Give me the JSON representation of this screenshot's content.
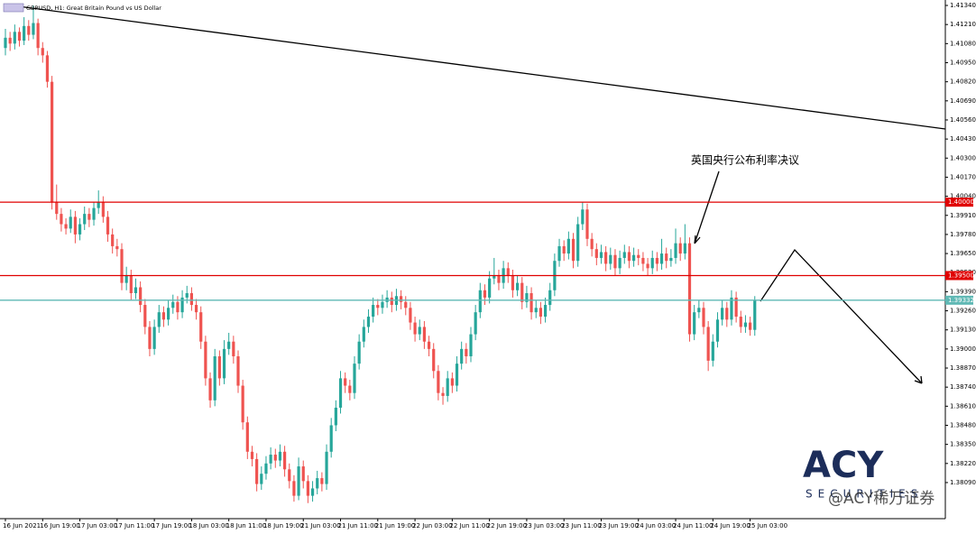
{
  "chart_data": {
    "type": "candlestick",
    "title": "GBPUSD, H1:  Great Britain Pound vs US Dollar",
    "annotation": "英国央行公布利率决议",
    "logo": "ACY",
    "logo_sub": "SECURITIES",
    "watermark": "@ACY稀万证券",
    "up_color": "#26a69a",
    "down_color": "#ef5350",
    "ylim": [
      1.37844,
      1.41377
    ],
    "yticks": [
      {
        "value": 1.4134,
        "label": "1.41340"
      },
      {
        "value": 1.4121,
        "label": "1.41210"
      },
      {
        "value": 1.4108,
        "label": "1.41080"
      },
      {
        "value": 1.4095,
        "label": "1.40950"
      },
      {
        "value": 1.4082,
        "label": "1.40820"
      },
      {
        "value": 1.4069,
        "label": "1.40690"
      },
      {
        "value": 1.4056,
        "label": "1.40560"
      },
      {
        "value": 1.4043,
        "label": "1.40430"
      },
      {
        "value": 1.403,
        "label": "1.40300"
      },
      {
        "value": 1.4017,
        "label": "1.40170"
      },
      {
        "value": 1.4004,
        "label": "1.40040"
      },
      {
        "value": 1.3991,
        "label": "1.39910"
      },
      {
        "value": 1.3978,
        "label": "1.39780"
      },
      {
        "value": 1.3965,
        "label": "1.39650"
      },
      {
        "value": 1.3952,
        "label": "1.39520"
      },
      {
        "value": 1.3939,
        "label": "1.39390"
      },
      {
        "value": 1.3926,
        "label": "1.39260"
      },
      {
        "value": 1.3913,
        "label": "1.39130"
      },
      {
        "value": 1.39,
        "label": "1.39000"
      },
      {
        "value": 1.3887,
        "label": "1.38870"
      },
      {
        "value": 1.3874,
        "label": "1.38740"
      },
      {
        "value": 1.3861,
        "label": "1.38610"
      },
      {
        "value": 1.3848,
        "label": "1.38480"
      },
      {
        "value": 1.3835,
        "label": "1.38350"
      },
      {
        "value": 1.3822,
        "label": "1.38220"
      },
      {
        "value": 1.3809,
        "label": "1.38090"
      }
    ],
    "levels": [
      {
        "value": 1.4,
        "label": "1.40000",
        "color": "#e00000"
      },
      {
        "value": 1.395,
        "label": "1.39500",
        "color": "#e00000"
      },
      {
        "value": 1.39332,
        "label": "1.39332",
        "color": "#5fb8b4"
      }
    ],
    "categories": [
      "16 Jun 2021",
      null,
      null,
      null,
      null,
      null,
      null,
      null,
      "16 Jun 19:00",
      null,
      null,
      null,
      null,
      null,
      null,
      null,
      "17 Jun 03:00",
      null,
      null,
      null,
      null,
      null,
      null,
      null,
      "17 Jun 11:00",
      null,
      null,
      null,
      null,
      null,
      null,
      null,
      "17 Jun 19:00",
      null,
      null,
      null,
      null,
      null,
      null,
      null,
      "18 Jun 03:00",
      null,
      null,
      null,
      null,
      null,
      null,
      null,
      "18 Jun 11:00",
      null,
      null,
      null,
      null,
      null,
      null,
      null,
      "18 Jun 19:00",
      null,
      null,
      null,
      null,
      null,
      null,
      null,
      "21 Jun 03:00",
      null,
      null,
      null,
      null,
      null,
      null,
      null,
      "21 Jun 11:00",
      null,
      null,
      null,
      null,
      null,
      null,
      null,
      "21 Jun 19:00",
      null,
      null,
      null,
      null,
      null,
      null,
      null,
      "22 Jun 03:00",
      null,
      null,
      null,
      null,
      null,
      null,
      null,
      "22 Jun 11:00",
      null,
      null,
      null,
      null,
      null,
      null,
      null,
      "22 Jun 19:00",
      null,
      null,
      null,
      null,
      null,
      null,
      null,
      "23 Jun 03:00",
      null,
      null,
      null,
      null,
      null,
      null,
      null,
      "23 Jun 11:00",
      null,
      null,
      null,
      null,
      null,
      null,
      null,
      "23 Jun 19:00",
      null,
      null,
      null,
      null,
      null,
      null,
      null,
      "24 Jun 03:00",
      null,
      null,
      null,
      null,
      null,
      null,
      null,
      "24 Jun 11:00",
      null,
      null,
      null,
      null,
      null,
      null,
      null,
      "24 Jun 19:00",
      null,
      null,
      null,
      null,
      null,
      null,
      null,
      "25 Jun 03:00",
      null
    ],
    "ohlc": [
      [
        1.4105,
        1.4118,
        1.41,
        1.4112
      ],
      [
        1.4112,
        1.4116,
        1.4103,
        1.4108
      ],
      [
        1.4108,
        1.4121,
        1.4104,
        1.4116
      ],
      [
        1.4116,
        1.4119,
        1.4106,
        1.411
      ],
      [
        1.411,
        1.4126,
        1.4107,
        1.412
      ],
      [
        1.412,
        1.4124,
        1.411,
        1.4114
      ],
      [
        1.4114,
        1.4134,
        1.4111,
        1.4122
      ],
      [
        1.4122,
        1.4125,
        1.41,
        1.4105
      ],
      [
        1.4105,
        1.4109,
        1.4095,
        1.41
      ],
      [
        1.41,
        1.4103,
        1.4078,
        1.4082
      ],
      [
        1.4082,
        1.4086,
        1.3995,
        1.4
      ],
      [
        1.4,
        1.4012,
        1.3988,
        1.3992
      ],
      [
        1.3992,
        1.3996,
        1.398,
        1.3985
      ],
      [
        1.3985,
        1.3989,
        1.3978,
        1.3982
      ],
      [
        1.3982,
        1.3995,
        1.3979,
        1.399
      ],
      [
        1.399,
        1.3994,
        1.3972,
        1.3978
      ],
      [
        1.3978,
        1.3989,
        1.3974,
        1.3985
      ],
      [
        1.3985,
        1.3997,
        1.3981,
        1.3992
      ],
      [
        1.3992,
        1.3996,
        1.3983,
        1.3988
      ],
      [
        1.3988,
        1.4,
        1.3984,
        1.3996
      ],
      [
        1.3996,
        1.4008,
        1.3992,
        1.4
      ],
      [
        1.4,
        1.4004,
        1.3986,
        1.399
      ],
      [
        1.399,
        1.3994,
        1.3973,
        1.3978
      ],
      [
        1.3978,
        1.3982,
        1.3965,
        1.397
      ],
      [
        1.397,
        1.3975,
        1.3963,
        1.3968
      ],
      [
        1.3968,
        1.3972,
        1.394,
        1.3945
      ],
      [
        1.3945,
        1.3956,
        1.394,
        1.395
      ],
      [
        1.395,
        1.3954,
        1.3933,
        1.3938
      ],
      [
        1.3938,
        1.3948,
        1.3934,
        1.3942
      ],
      [
        1.3942,
        1.3946,
        1.3925,
        1.393
      ],
      [
        1.393,
        1.3934,
        1.391,
        1.3915
      ],
      [
        1.3915,
        1.3919,
        1.3895,
        1.39
      ],
      [
        1.39,
        1.392,
        1.3896,
        1.3915
      ],
      [
        1.3915,
        1.393,
        1.3911,
        1.3925
      ],
      [
        1.3925,
        1.3929,
        1.3915,
        1.392
      ],
      [
        1.392,
        1.3933,
        1.3916,
        1.3928
      ],
      [
        1.3928,
        1.3937,
        1.3924,
        1.3932
      ],
      [
        1.3932,
        1.3936,
        1.392,
        1.3925
      ],
      [
        1.3925,
        1.394,
        1.3921,
        1.3935
      ],
      [
        1.3935,
        1.3943,
        1.3931,
        1.3938
      ],
      [
        1.3938,
        1.3942,
        1.3926,
        1.393
      ],
      [
        1.393,
        1.3934,
        1.392,
        1.3925
      ],
      [
        1.3925,
        1.3929,
        1.39,
        1.3905
      ],
      [
        1.3905,
        1.3909,
        1.3875,
        1.388
      ],
      [
        1.388,
        1.3884,
        1.386,
        1.3865
      ],
      [
        1.3865,
        1.39,
        1.3861,
        1.3895
      ],
      [
        1.3895,
        1.3899,
        1.3875,
        1.388
      ],
      [
        1.388,
        1.3906,
        1.3876,
        1.39
      ],
      [
        1.39,
        1.3911,
        1.3896,
        1.3905
      ],
      [
        1.3905,
        1.3909,
        1.389,
        1.3895
      ],
      [
        1.3895,
        1.3899,
        1.387,
        1.3875
      ],
      [
        1.3875,
        1.3879,
        1.3845,
        1.385
      ],
      [
        1.385,
        1.3854,
        1.3825,
        1.383
      ],
      [
        1.383,
        1.3834,
        1.382,
        1.3825
      ],
      [
        1.3825,
        1.3829,
        1.3803,
        1.3808
      ],
      [
        1.3808,
        1.382,
        1.3804,
        1.3815
      ],
      [
        1.3815,
        1.3827,
        1.3811,
        1.3822
      ],
      [
        1.3822,
        1.3833,
        1.3818,
        1.3828
      ],
      [
        1.3828,
        1.3832,
        1.3819,
        1.3824
      ],
      [
        1.3824,
        1.3835,
        1.382,
        1.383
      ],
      [
        1.383,
        1.3834,
        1.3813,
        1.3818
      ],
      [
        1.3818,
        1.3822,
        1.3805,
        1.381
      ],
      [
        1.381,
        1.3814,
        1.3796,
        1.38
      ],
      [
        1.38,
        1.3826,
        1.3797,
        1.382
      ],
      [
        1.382,
        1.3824,
        1.3805,
        1.381
      ],
      [
        1.381,
        1.3814,
        1.3795,
        1.38
      ],
      [
        1.38,
        1.381,
        1.3796,
        1.3805
      ],
      [
        1.3805,
        1.3817,
        1.3801,
        1.3812
      ],
      [
        1.3812,
        1.3816,
        1.3803,
        1.3808
      ],
      [
        1.3808,
        1.3835,
        1.3804,
        1.383
      ],
      [
        1.383,
        1.3853,
        1.3826,
        1.3848
      ],
      [
        1.3848,
        1.3865,
        1.3844,
        1.386
      ],
      [
        1.386,
        1.3885,
        1.3856,
        1.388
      ],
      [
        1.388,
        1.3884,
        1.387,
        1.3875
      ],
      [
        1.3875,
        1.3879,
        1.3865,
        1.387
      ],
      [
        1.387,
        1.3895,
        1.3866,
        1.389
      ],
      [
        1.389,
        1.391,
        1.3886,
        1.3905
      ],
      [
        1.3905,
        1.392,
        1.3901,
        1.3915
      ],
      [
        1.3915,
        1.3927,
        1.3911,
        1.3922
      ],
      [
        1.3922,
        1.3935,
        1.3918,
        1.393
      ],
      [
        1.393,
        1.3934,
        1.3923,
        1.3928
      ],
      [
        1.3928,
        1.3937,
        1.3924,
        1.3932
      ],
      [
        1.3932,
        1.394,
        1.3928,
        1.3935
      ],
      [
        1.3935,
        1.3939,
        1.3925,
        1.393
      ],
      [
        1.393,
        1.3941,
        1.3926,
        1.3936
      ],
      [
        1.3936,
        1.394,
        1.3927,
        1.3932
      ],
      [
        1.3932,
        1.3936,
        1.3923,
        1.3928
      ],
      [
        1.3928,
        1.3932,
        1.3913,
        1.3918
      ],
      [
        1.3918,
        1.3922,
        1.3905,
        1.391
      ],
      [
        1.391,
        1.392,
        1.3906,
        1.3915
      ],
      [
        1.3915,
        1.3919,
        1.39,
        1.3905
      ],
      [
        1.3905,
        1.3909,
        1.3895,
        1.39
      ],
      [
        1.39,
        1.3904,
        1.388,
        1.3885
      ],
      [
        1.3885,
        1.3889,
        1.3865,
        1.387
      ],
      [
        1.387,
        1.3874,
        1.3862,
        1.3868
      ],
      [
        1.3868,
        1.3885,
        1.3864,
        1.388
      ],
      [
        1.388,
        1.3884,
        1.387,
        1.3875
      ],
      [
        1.3875,
        1.3895,
        1.3871,
        1.389
      ],
      [
        1.389,
        1.3905,
        1.3886,
        1.39
      ],
      [
        1.39,
        1.3904,
        1.389,
        1.3895
      ],
      [
        1.3895,
        1.3915,
        1.3891,
        1.391
      ],
      [
        1.391,
        1.393,
        1.3906,
        1.3925
      ],
      [
        1.3925,
        1.3945,
        1.3921,
        1.394
      ],
      [
        1.394,
        1.3944,
        1.393,
        1.3935
      ],
      [
        1.3935,
        1.3953,
        1.3931,
        1.3948
      ],
      [
        1.3948,
        1.3962,
        1.3944,
        1.395
      ],
      [
        1.395,
        1.3954,
        1.394,
        1.3945
      ],
      [
        1.3945,
        1.396,
        1.3941,
        1.3955
      ],
      [
        1.3955,
        1.3959,
        1.3945,
        1.395
      ],
      [
        1.395,
        1.3954,
        1.3935,
        1.394
      ],
      [
        1.394,
        1.395,
        1.3936,
        1.3945
      ],
      [
        1.3945,
        1.3949,
        1.3927,
        1.3932
      ],
      [
        1.3932,
        1.3943,
        1.3928,
        1.3938
      ],
      [
        1.3938,
        1.3942,
        1.392,
        1.3925
      ],
      [
        1.3925,
        1.3933,
        1.3921,
        1.3928
      ],
      [
        1.3928,
        1.3932,
        1.3917,
        1.3922
      ],
      [
        1.3922,
        1.3935,
        1.3918,
        1.393
      ],
      [
        1.393,
        1.3945,
        1.3926,
        1.394
      ],
      [
        1.394,
        1.3965,
        1.3936,
        1.396
      ],
      [
        1.396,
        1.3975,
        1.3956,
        1.397
      ],
      [
        1.397,
        1.3974,
        1.396,
        1.3965
      ],
      [
        1.3965,
        1.398,
        1.3961,
        1.3975
      ],
      [
        1.3975,
        1.3979,
        1.3955,
        1.396
      ],
      [
        1.396,
        1.399,
        1.3956,
        1.3985
      ],
      [
        1.3985,
        1.4,
        1.3981,
        1.3995
      ],
      [
        1.3995,
        1.3999,
        1.397,
        1.3975
      ],
      [
        1.3975,
        1.3979,
        1.3963,
        1.3968
      ],
      [
        1.3968,
        1.3972,
        1.3957,
        1.3962
      ],
      [
        1.3962,
        1.3971,
        1.3958,
        1.3966
      ],
      [
        1.3966,
        1.397,
        1.3953,
        1.3958
      ],
      [
        1.3958,
        1.3969,
        1.3954,
        1.3964
      ],
      [
        1.3964,
        1.3968,
        1.395,
        1.3955
      ],
      [
        1.3955,
        1.3967,
        1.3951,
        1.3962
      ],
      [
        1.3962,
        1.3971,
        1.3958,
        1.3966
      ],
      [
        1.3966,
        1.397,
        1.3955,
        1.396
      ],
      [
        1.396,
        1.3969,
        1.3956,
        1.3964
      ],
      [
        1.3964,
        1.3968,
        1.3957,
        1.3962
      ],
      [
        1.3962,
        1.3966,
        1.3953,
        1.3958
      ],
      [
        1.3958,
        1.3962,
        1.395,
        1.3955
      ],
      [
        1.3955,
        1.3967,
        1.3951,
        1.3962
      ],
      [
        1.3962,
        1.3966,
        1.3953,
        1.3958
      ],
      [
        1.3958,
        1.3975,
        1.3954,
        1.3965
      ],
      [
        1.3965,
        1.3969,
        1.3955,
        1.396
      ],
      [
        1.396,
        1.3968,
        1.3956,
        1.3962
      ],
      [
        1.3962,
        1.3982,
        1.3958,
        1.3972
      ],
      [
        1.3972,
        1.3976,
        1.396,
        1.3965
      ],
      [
        1.3965,
        1.3985,
        1.3961,
        1.3972
      ],
      [
        1.3972,
        1.3976,
        1.3905,
        1.391
      ],
      [
        1.391,
        1.393,
        1.3906,
        1.3925
      ],
      [
        1.3925,
        1.3933,
        1.3921,
        1.3928
      ],
      [
        1.3928,
        1.3932,
        1.391,
        1.3915
      ],
      [
        1.3915,
        1.3919,
        1.3885,
        1.3892
      ],
      [
        1.3892,
        1.391,
        1.3888,
        1.3905
      ],
      [
        1.3905,
        1.3925,
        1.3901,
        1.392
      ],
      [
        1.392,
        1.3933,
        1.3916,
        1.3928
      ],
      [
        1.3928,
        1.3932,
        1.3915,
        1.392
      ],
      [
        1.392,
        1.394,
        1.3916,
        1.3935
      ],
      [
        1.3935,
        1.3939,
        1.3918,
        1.3922
      ],
      [
        1.3922,
        1.3926,
        1.3911,
        1.3915
      ],
      [
        1.3915,
        1.3923,
        1.3911,
        1.3918
      ],
      [
        1.3918,
        1.3922,
        1.3909,
        1.3913
      ],
      [
        1.3913,
        1.3936,
        1.3909,
        1.3933
      ]
    ]
  }
}
